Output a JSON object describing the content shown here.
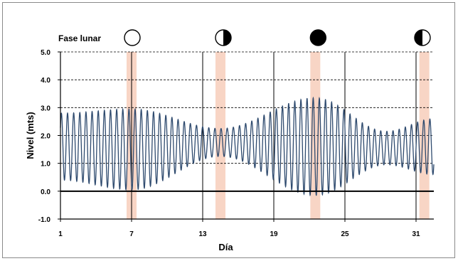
{
  "chart_data": {
    "type": "line",
    "title": "",
    "xlabel": "Día",
    "ylabel": "Nivel (mts)",
    "xlim": [
      1,
      32.5
    ],
    "ylim": [
      -1.0,
      5.0
    ],
    "xticks": [
      1,
      7,
      13,
      19,
      25,
      31
    ],
    "xtick_labels": [
      "1",
      "7",
      "13",
      "19",
      "25",
      "31"
    ],
    "yticks": [
      -1.0,
      0.0,
      1.0,
      2.0,
      3.0,
      4.0,
      5.0
    ],
    "ytick_labels": [
      "-1.0",
      "0.0",
      "1.0",
      "2.0",
      "3.0",
      "4.0",
      "5.0"
    ],
    "grid": {
      "horizontal_dashed": true,
      "vertical_solid_at": [
        7,
        13,
        19,
        25,
        31
      ]
    },
    "zero_line": true,
    "series": [
      {
        "tide_cycles_per_day": 1.93,
        "color": "#2e4a6e",
        "envelope": {
          "day": [
            1,
            7,
            14.5,
            22.5,
            28.5,
            32.5
          ],
          "mean": [
            1.6,
            1.5,
            1.75,
            1.6,
            1.55,
            1.6
          ],
          "amplitude": [
            1.2,
            1.45,
            0.5,
            1.75,
            0.6,
            1.0
          ]
        }
      }
    ],
    "moon_phase_legend": {
      "label": "Fase lunar",
      "phases": [
        {
          "day": 7,
          "phase": "full-moon",
          "band_color": "#f8d5c5"
        },
        {
          "day": 14.5,
          "phase": "last-quarter",
          "band_color": "#f8d5c5"
        },
        {
          "day": 22.5,
          "phase": "new-moon",
          "band_color": "#f8d5c5"
        },
        {
          "day": 31.7,
          "phase": "first-quarter",
          "band_color": "#f8d5c5"
        }
      ]
    }
  }
}
